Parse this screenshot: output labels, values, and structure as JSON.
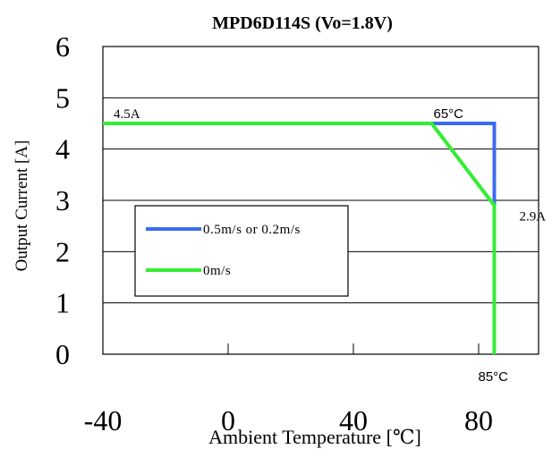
{
  "chart_data": {
    "type": "line",
    "title": "MPD6D114S  (Vo=1.8V)",
    "xlabel": "Ambient Temperature [℃]",
    "ylabel": "Output Current [A]",
    "xlim": [
      -40,
      85
    ],
    "ylim": [
      0,
      6
    ],
    "xticks": [
      -40,
      0,
      40,
      80
    ],
    "xtick_labels": [
      "-40",
      "0",
      "40",
      "80"
    ],
    "yticks": [
      0,
      1,
      2,
      3,
      4,
      5,
      6
    ],
    "ytick_labels": [
      "0",
      "1",
      "2",
      "3",
      "4",
      "5",
      "6"
    ],
    "grid": "horizontal",
    "legend_position": "lower-left",
    "series": [
      {
        "name": "0.5m/s or 0.2m/s",
        "color": "#3a6cf0",
        "x": [
          -40,
          85,
          85
        ],
        "y": [
          4.5,
          4.5,
          0
        ]
      },
      {
        "name": "0m/s",
        "color": "#33ee33",
        "x": [
          -40,
          65,
          85,
          85
        ],
        "y": [
          4.5,
          4.5,
          2.9,
          0
        ]
      }
    ],
    "annotations": [
      {
        "text": "4.5A",
        "x": -40,
        "y": 4.5
      },
      {
        "text": "65°C",
        "x": 65,
        "y": 4.5
      },
      {
        "text": "2.9A",
        "x": 85,
        "y": 2.9
      },
      {
        "text": "85°C",
        "x": 85,
        "y": 0
      }
    ]
  }
}
